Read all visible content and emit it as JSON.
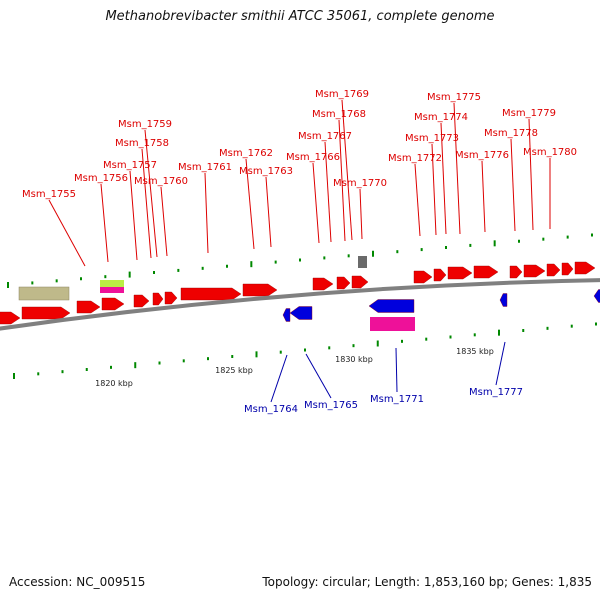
{
  "title": "Methanobrevibacter smithii ATCC 35061, complete genome",
  "footer": {
    "accession": "Accession: NC_009515",
    "summary": "Topology: circular; Length: 1,853,160 bp; Genes: 1,835"
  },
  "colors": {
    "forward_gene": "#ee0000",
    "reverse_gene": "#0000dd",
    "forward_label": "#dd0000",
    "reverse_label": "#0000aa",
    "backbone": "#808080",
    "tick": "#008800",
    "tan_feature": "#bfb98a",
    "lime_feature": "#bbee44",
    "magenta_feature": "#ee1199",
    "gray_feature": "#6a6a6a"
  },
  "scale_labels": [
    "1820 kbp",
    "1825 kbp",
    "1830 kbp",
    "1835 kbp"
  ],
  "forward_labels": [
    "Msm_1755",
    "Msm_1756",
    "Msm_1757",
    "Msm_1758",
    "Msm_1759",
    "Msm_1760",
    "Msm_1761",
    "Msm_1762",
    "Msm_1763",
    "Msm_1766",
    "Msm_1767",
    "Msm_1768",
    "Msm_1769",
    "Msm_1770",
    "Msm_1772",
    "Msm_1773",
    "Msm_1774",
    "Msm_1775",
    "Msm_1776",
    "Msm_1778",
    "Msm_1779",
    "Msm_1780"
  ],
  "reverse_labels": [
    "Msm_1764",
    "Msm_1765",
    "Msm_1771",
    "Msm_1777"
  ]
}
